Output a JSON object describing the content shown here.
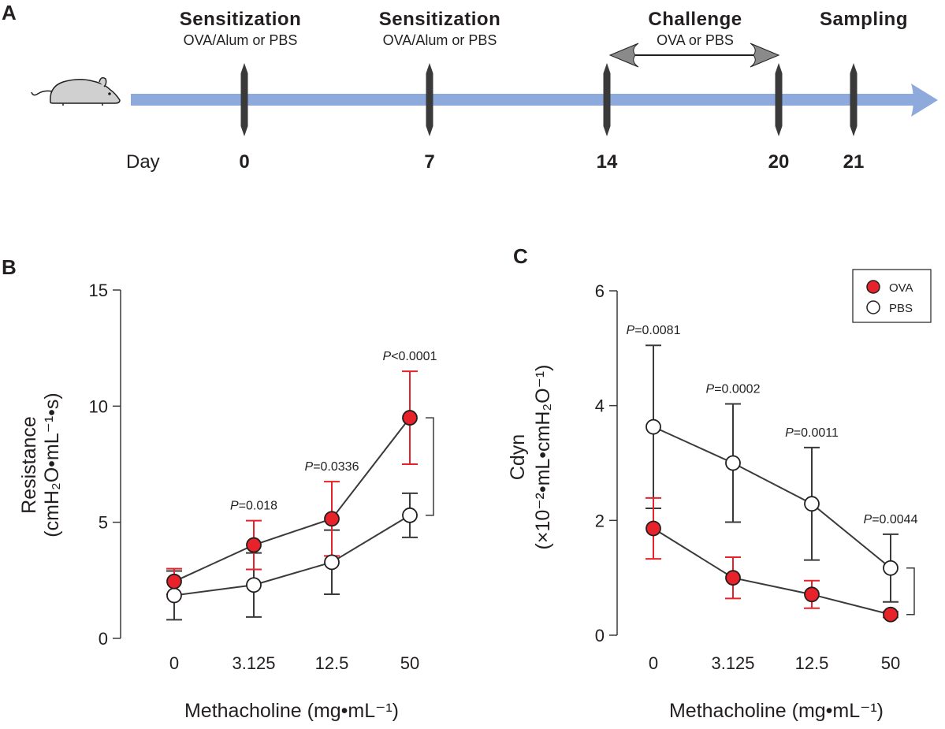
{
  "panel_a": {
    "letter": "A",
    "day_label": "Day",
    "events": [
      {
        "day": "0",
        "title": "Sensitization",
        "subtitle": "OVA/Alum or PBS"
      },
      {
        "day": "7",
        "title": "Sensitization",
        "subtitle": "OVA/Alum or PBS"
      },
      {
        "day": "14",
        "title": "",
        "subtitle": ""
      },
      {
        "day": "20",
        "title": "",
        "subtitle": ""
      },
      {
        "day": "21",
        "title": "Sampling",
        "subtitle": ""
      }
    ],
    "challenge": {
      "title": "Challenge",
      "subtitle": "OVA or PBS"
    },
    "colors": {
      "timeline": "#8ea9db",
      "marker": "#3a3a3a",
      "mouse": "#d0d0d0"
    }
  },
  "legend": {
    "ova": "OVA",
    "pbs": "PBS"
  },
  "colors": {
    "ova": "#e8222a",
    "pbs": "#ffffff",
    "line": "#3a3a3a",
    "ova_error": "#e8222a",
    "pbs_error": "#3a3a3a"
  },
  "chart_data": [
    {
      "panel": "B",
      "type": "line",
      "categories": [
        "0",
        "3.125",
        "12.5",
        "50"
      ],
      "series": [
        {
          "name": "OVA",
          "values": [
            2.45,
            4.02,
            5.15,
            9.5
          ],
          "errors": [
            0.55,
            1.05,
            1.6,
            2.0
          ]
        },
        {
          "name": "PBS",
          "values": [
            1.85,
            2.3,
            3.28,
            5.3
          ],
          "errors": [
            1.05,
            1.38,
            1.38,
            0.95
          ]
        }
      ],
      "pvalues": [
        {
          "index": 1,
          "label_italic": "P",
          "label": "=0.018"
        },
        {
          "index": 2,
          "label_italic": "P",
          "label": "=0.0336"
        },
        {
          "index": 3,
          "label_italic": "P",
          "label": "<0.0001"
        }
      ],
      "ylim": [
        0,
        15
      ],
      "yticks": [
        "0",
        "5",
        "10",
        "15"
      ],
      "ylabel_line1": "Resistance",
      "ylabel_line2": "(cmH₂O•mL⁻¹•s)",
      "xlabel": "Methacholine (mg•mL⁻¹)"
    },
    {
      "panel": "C",
      "type": "line",
      "categories": [
        "0",
        "3.125",
        "12.5",
        "50"
      ],
      "series": [
        {
          "name": "OVA",
          "values": [
            1.86,
            1.0,
            0.71,
            0.36
          ],
          "errors": [
            0.53,
            0.36,
            0.24,
            0.05
          ]
        },
        {
          "name": "PBS",
          "values": [
            3.63,
            3.0,
            2.29,
            1.17
          ],
          "errors": [
            1.42,
            1.03,
            0.98,
            0.59
          ]
        }
      ],
      "pvalues": [
        {
          "index": 0,
          "label_italic": "P",
          "label": "=0.0081"
        },
        {
          "index": 1,
          "label_italic": "P",
          "label": "=0.0002"
        },
        {
          "index": 2,
          "label_italic": "P",
          "label": "=0.0011"
        },
        {
          "index": 3,
          "label_italic": "P",
          "label": "=0.0044"
        }
      ],
      "ylim": [
        0,
        6
      ],
      "yticks": [
        "0",
        "2",
        "4",
        "6"
      ],
      "ylabel_line1": "Cdyn",
      "ylabel_line2": "(×10⁻²•mL•cmH₂O⁻¹)",
      "xlabel": "Methacholine (mg•mL⁻¹)"
    }
  ],
  "panel_b_letter": "B",
  "panel_c_letter": "C"
}
